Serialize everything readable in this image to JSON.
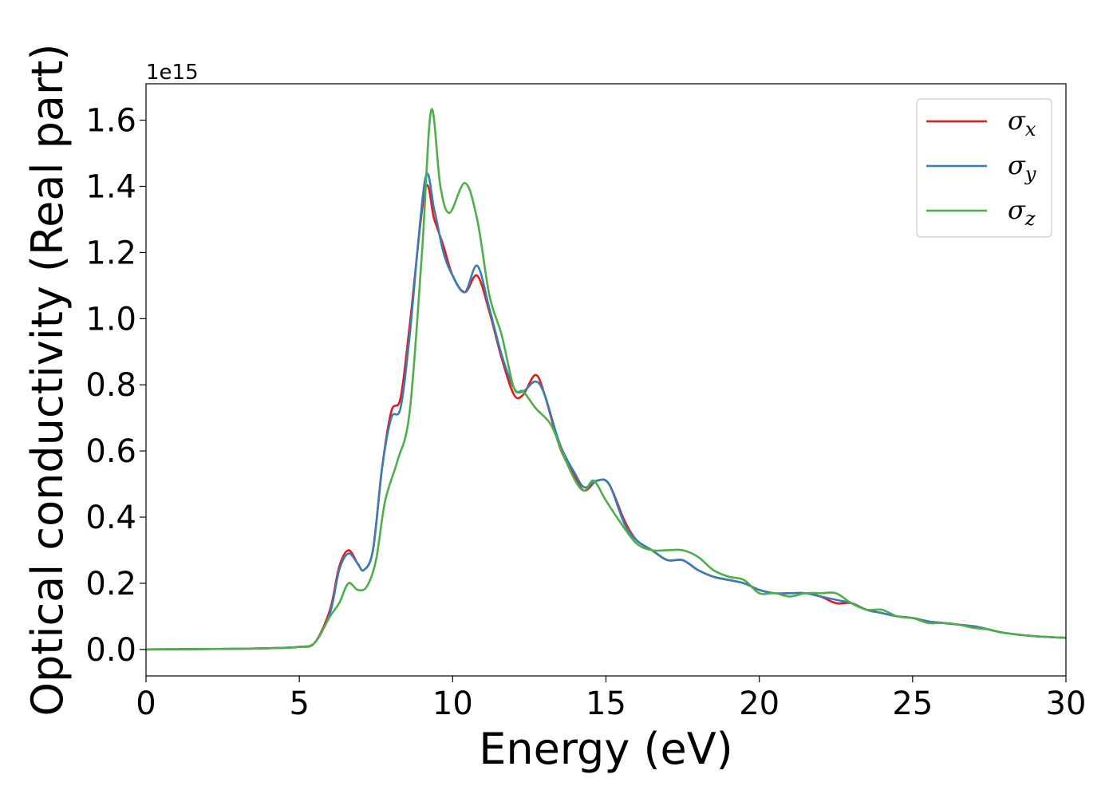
{
  "chart_data": {
    "type": "line",
    "title": "",
    "xlabel": "Energy (eV)",
    "ylabel": "Optical conductivity (Real part)",
    "offset_text": "1e15",
    "xlim": [
      0,
      30
    ],
    "ylim": [
      -0.08,
      1.71
    ],
    "xticks": [
      0,
      5,
      10,
      15,
      20,
      25,
      30
    ],
    "xtick_labels": [
      "0",
      "5",
      "10",
      "15",
      "20",
      "25",
      "30"
    ],
    "yticks": [
      0.0,
      0.2,
      0.4,
      0.6,
      0.8,
      1.0,
      1.2,
      1.4,
      1.6
    ],
    "ytick_labels": [
      "0.0",
      "0.2",
      "0.4",
      "0.6",
      "0.8",
      "1.0",
      "1.2",
      "1.4",
      "1.6"
    ],
    "grid": false,
    "legend_position": "top-right",
    "legend": [
      {
        "base": "σ",
        "sub": "x"
      },
      {
        "base": "σ",
        "sub": "y"
      },
      {
        "base": "σ",
        "sub": "z"
      }
    ],
    "series": [
      {
        "color": "#e41a1c",
        "points": [
          [
            0,
            0
          ],
          [
            3,
            0.002
          ],
          [
            4.5,
            0.005
          ],
          [
            5,
            0.008
          ],
          [
            5.5,
            0.02
          ],
          [
            6.0,
            0.12
          ],
          [
            6.3,
            0.25
          ],
          [
            6.6,
            0.3
          ],
          [
            6.9,
            0.26
          ],
          [
            7.1,
            0.24
          ],
          [
            7.4,
            0.3
          ],
          [
            7.7,
            0.55
          ],
          [
            8.0,
            0.72
          ],
          [
            8.3,
            0.76
          ],
          [
            8.6,
            0.98
          ],
          [
            9.1,
            1.39
          ],
          [
            9.4,
            1.3
          ],
          [
            9.7,
            1.22
          ],
          [
            10.0,
            1.13
          ],
          [
            10.4,
            1.08
          ],
          [
            10.8,
            1.13
          ],
          [
            11.2,
            1.02
          ],
          [
            11.6,
            0.88
          ],
          [
            12.0,
            0.77
          ],
          [
            12.3,
            0.77
          ],
          [
            12.7,
            0.83
          ],
          [
            13.0,
            0.77
          ],
          [
            13.5,
            0.61
          ],
          [
            14.0,
            0.52
          ],
          [
            14.3,
            0.48
          ],
          [
            14.7,
            0.51
          ],
          [
            15.1,
            0.5
          ],
          [
            15.6,
            0.39
          ],
          [
            16.0,
            0.33
          ],
          [
            16.5,
            0.3
          ],
          [
            17.0,
            0.27
          ],
          [
            17.5,
            0.27
          ],
          [
            18.0,
            0.24
          ],
          [
            18.5,
            0.22
          ],
          [
            19.0,
            0.21
          ],
          [
            19.5,
            0.2
          ],
          [
            20.0,
            0.18
          ],
          [
            20.5,
            0.17
          ],
          [
            21.0,
            0.17
          ],
          [
            21.5,
            0.17
          ],
          [
            22.0,
            0.16
          ],
          [
            22.5,
            0.14
          ],
          [
            23.0,
            0.14
          ],
          [
            23.5,
            0.12
          ],
          [
            24.0,
            0.11
          ],
          [
            24.5,
            0.1
          ],
          [
            25.0,
            0.095
          ],
          [
            25.5,
            0.085
          ],
          [
            26.0,
            0.08
          ],
          [
            26.5,
            0.075
          ],
          [
            27.0,
            0.07
          ],
          [
            27.5,
            0.06
          ],
          [
            28.0,
            0.05
          ],
          [
            29.0,
            0.04
          ],
          [
            30.0,
            0.035
          ]
        ]
      },
      {
        "color": "#377eb8",
        "points": [
          [
            0,
            0
          ],
          [
            3,
            0.002
          ],
          [
            4.5,
            0.005
          ],
          [
            5,
            0.008
          ],
          [
            5.5,
            0.02
          ],
          [
            6.0,
            0.11
          ],
          [
            6.3,
            0.24
          ],
          [
            6.6,
            0.29
          ],
          [
            6.9,
            0.26
          ],
          [
            7.1,
            0.24
          ],
          [
            7.4,
            0.3
          ],
          [
            7.7,
            0.55
          ],
          [
            8.0,
            0.7
          ],
          [
            8.3,
            0.73
          ],
          [
            8.6,
            0.95
          ],
          [
            9.1,
            1.42
          ],
          [
            9.4,
            1.33
          ],
          [
            9.7,
            1.2
          ],
          [
            10.0,
            1.13
          ],
          [
            10.4,
            1.08
          ],
          [
            10.8,
            1.16
          ],
          [
            11.2,
            1.03
          ],
          [
            11.6,
            0.89
          ],
          [
            12.0,
            0.79
          ],
          [
            12.3,
            0.78
          ],
          [
            12.7,
            0.81
          ],
          [
            13.0,
            0.77
          ],
          [
            13.5,
            0.62
          ],
          [
            14.0,
            0.53
          ],
          [
            14.3,
            0.49
          ],
          [
            14.7,
            0.51
          ],
          [
            15.1,
            0.5
          ],
          [
            15.6,
            0.38
          ],
          [
            16.0,
            0.33
          ],
          [
            16.5,
            0.3
          ],
          [
            17.0,
            0.27
          ],
          [
            17.5,
            0.27
          ],
          [
            18.0,
            0.24
          ],
          [
            18.5,
            0.22
          ],
          [
            19.0,
            0.21
          ],
          [
            19.5,
            0.2
          ],
          [
            20.0,
            0.18
          ],
          [
            20.5,
            0.17
          ],
          [
            21.0,
            0.17
          ],
          [
            21.5,
            0.17
          ],
          [
            22.0,
            0.16
          ],
          [
            22.5,
            0.15
          ],
          [
            23.0,
            0.14
          ],
          [
            23.5,
            0.12
          ],
          [
            24.0,
            0.11
          ],
          [
            24.5,
            0.1
          ],
          [
            25.0,
            0.095
          ],
          [
            25.5,
            0.085
          ],
          [
            26.0,
            0.08
          ],
          [
            26.5,
            0.075
          ],
          [
            27.0,
            0.07
          ],
          [
            27.5,
            0.06
          ],
          [
            28.0,
            0.05
          ],
          [
            29.0,
            0.04
          ],
          [
            30.0,
            0.035
          ]
        ]
      },
      {
        "color": "#4daf4a",
        "points": [
          [
            0,
            0
          ],
          [
            3,
            0.002
          ],
          [
            4.5,
            0.005
          ],
          [
            5,
            0.008
          ],
          [
            5.5,
            0.02
          ],
          [
            6.0,
            0.1
          ],
          [
            6.3,
            0.14
          ],
          [
            6.6,
            0.2
          ],
          [
            6.9,
            0.18
          ],
          [
            7.2,
            0.19
          ],
          [
            7.5,
            0.27
          ],
          [
            7.8,
            0.45
          ],
          [
            8.2,
            0.57
          ],
          [
            8.6,
            0.72
          ],
          [
            9.0,
            1.2
          ],
          [
            9.3,
            1.63
          ],
          [
            9.6,
            1.4
          ],
          [
            9.9,
            1.32
          ],
          [
            10.4,
            1.41
          ],
          [
            10.8,
            1.3
          ],
          [
            11.2,
            1.07
          ],
          [
            11.6,
            0.95
          ],
          [
            12.0,
            0.79
          ],
          [
            12.3,
            0.78
          ],
          [
            12.7,
            0.73
          ],
          [
            13.2,
            0.68
          ],
          [
            13.6,
            0.59
          ],
          [
            14.0,
            0.51
          ],
          [
            14.3,
            0.48
          ],
          [
            14.6,
            0.51
          ],
          [
            15.0,
            0.45
          ],
          [
            15.5,
            0.38
          ],
          [
            16.0,
            0.32
          ],
          [
            16.5,
            0.3
          ],
          [
            17.0,
            0.3
          ],
          [
            17.5,
            0.3
          ],
          [
            18.0,
            0.28
          ],
          [
            18.5,
            0.24
          ],
          [
            19.0,
            0.22
          ],
          [
            19.5,
            0.21
          ],
          [
            20.0,
            0.17
          ],
          [
            20.5,
            0.17
          ],
          [
            21.0,
            0.16
          ],
          [
            21.5,
            0.17
          ],
          [
            22.0,
            0.17
          ],
          [
            22.5,
            0.17
          ],
          [
            23.0,
            0.14
          ],
          [
            23.5,
            0.12
          ],
          [
            24.0,
            0.12
          ],
          [
            24.5,
            0.1
          ],
          [
            25.0,
            0.095
          ],
          [
            25.5,
            0.08
          ],
          [
            26.0,
            0.08
          ],
          [
            26.5,
            0.075
          ],
          [
            27.0,
            0.065
          ],
          [
            27.5,
            0.06
          ],
          [
            28.0,
            0.05
          ],
          [
            29.0,
            0.04
          ],
          [
            30.0,
            0.035
          ]
        ]
      }
    ]
  }
}
